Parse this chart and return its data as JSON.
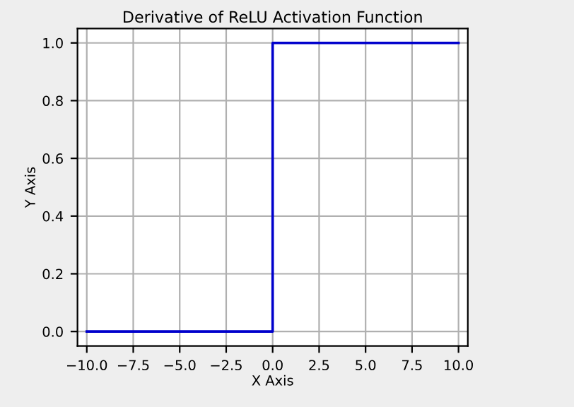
{
  "chart_data": {
    "type": "line",
    "title": "Derivative of ReLU Activation Function",
    "xlabel": "X Axis",
    "ylabel": "Y Axis",
    "x": [
      -10,
      0,
      0,
      10
    ],
    "series": [
      {
        "color": "#0000cc",
        "values": [
          0,
          0,
          1,
          1
        ]
      }
    ],
    "xlim": [
      -10.5,
      10.5
    ],
    "ylim": [
      -0.05,
      1.05
    ],
    "xticks": [
      {
        "value": -10,
        "label": "−10.0"
      },
      {
        "value": -7.5,
        "label": "−7.5"
      },
      {
        "value": -5,
        "label": "−5.0"
      },
      {
        "value": -2.5,
        "label": "−2.5"
      },
      {
        "value": 0,
        "label": "0.0"
      },
      {
        "value": 2.5,
        "label": "2.5"
      },
      {
        "value": 5,
        "label": "5.0"
      },
      {
        "value": 7.5,
        "label": "7.5"
      },
      {
        "value": 10,
        "label": "10.0"
      }
    ],
    "yticks": [
      {
        "value": 0,
        "label": "0.0"
      },
      {
        "value": 0.2,
        "label": "0.2"
      },
      {
        "value": 0.4,
        "label": "0.4"
      },
      {
        "value": 0.6,
        "label": "0.6"
      },
      {
        "value": 0.8,
        "label": "0.8"
      },
      {
        "value": 1,
        "label": "1.0"
      }
    ],
    "grid": true,
    "legend": false
  }
}
